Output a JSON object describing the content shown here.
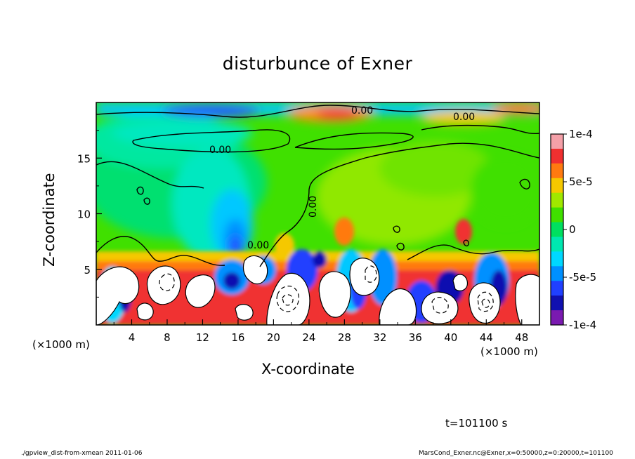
{
  "chart_data": {
    "type": "heatmap",
    "title": "disturbunce of Exner",
    "xlabel": "X-coordinate",
    "ylabel": "Z-coordinate",
    "x_unit": "(×1000 m)",
    "xlim": [
      0,
      50
    ],
    "ylim": [
      0,
      20
    ],
    "x_ticks": [
      "4",
      "8",
      "12",
      "16",
      "20",
      "24",
      "28",
      "32",
      "36",
      "40",
      "44",
      "48"
    ],
    "y_ticks": [
      "5",
      "10",
      "15"
    ],
    "colorbar": {
      "range": [
        -0.0001,
        0.0001
      ],
      "labels": [
        "1e-4",
        "5e-5",
        "0",
        "-5e-5",
        "-1e-4"
      ],
      "colors": [
        "#f4a0a8",
        "#f03030",
        "#ff7a10",
        "#f5c800",
        "#a0e800",
        "#40e000",
        "#00e060",
        "#00e8b0",
        "#00d8ff",
        "#0090ff",
        "#2040ff",
        "#1010b0",
        "#7a1ab0"
      ]
    },
    "contour_labels": [
      "0.00",
      "0.00",
      "0.00",
      "0.00",
      "0.00"
    ],
    "time_label": "t=101100 s",
    "footer_left": "./gpview_dist-from-xmean  2011-01-06",
    "footer_right": "MarsCond_Exner.nc@Exner,x=0:50000,z=0:20000,t=101100"
  }
}
